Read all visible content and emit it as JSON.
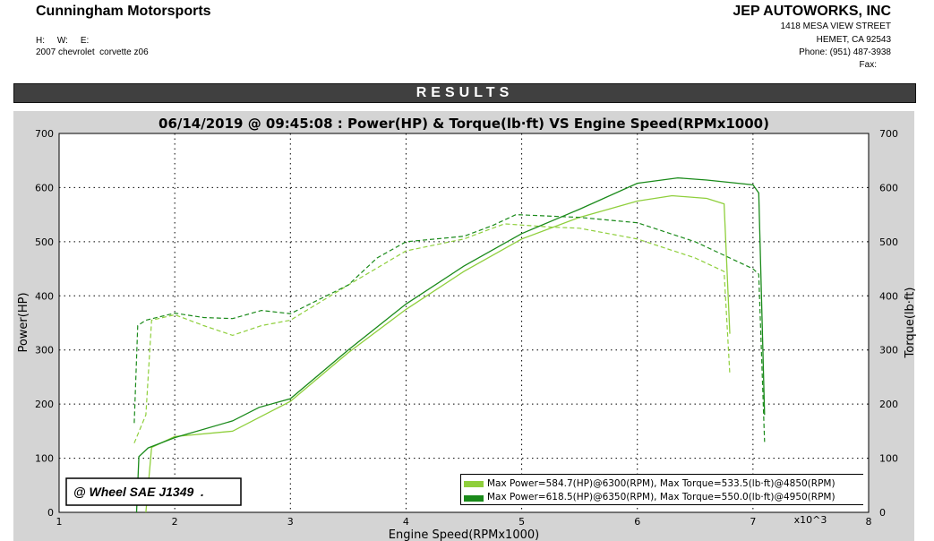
{
  "header": {
    "company": "Cunningham Motorsports",
    "hwe": "H:     W:     E:",
    "vehicle": "2007 chevrolet  corvette z06",
    "shop": "JEP AUTOWORKS, INC",
    "address": "1418 MESA VIEW STREET",
    "city": "HEMET, CA  92543",
    "phone": "Phone: (951) 487-3938",
    "fax": "Fax:"
  },
  "results_label": "RESULTS",
  "chart_data": {
    "type": "line",
    "title": "06/14/2019 @ 09:45:08 : Power(HP) & Torque(lb·ft) VS Engine Speed(RPMx1000)",
    "xlabel": "Engine Speed(RPMx1000)",
    "x_multiplier": "x10^3",
    "ylabel": "Power(HP)",
    "y2label": "Torque(lb·ft)",
    "xlim": [
      1,
      8
    ],
    "ylim": [
      0,
      700
    ],
    "y2lim": [
      0,
      700
    ],
    "xticks": [
      "1",
      "2",
      "3",
      "4",
      "5",
      "6",
      "7",
      "8"
    ],
    "yticks": [
      "0",
      "100",
      "200",
      "300",
      "400",
      "500",
      "600",
      "700"
    ],
    "grid": true,
    "legend_placement": "bottom-right",
    "annotation": "@ Wheel SAE J1349  .",
    "series": [
      {
        "name": "Max Power=584.7(HP)@6300(RPM), Max Torque=533.5(lb·ft)@4850(RPM)",
        "color": "#8fcf3c",
        "power": [
          [
            1.75,
            0
          ],
          [
            1.8,
            120
          ],
          [
            2.0,
            140
          ],
          [
            2.5,
            150
          ],
          [
            3.0,
            205
          ],
          [
            3.5,
            295
          ],
          [
            4.0,
            375
          ],
          [
            4.5,
            445
          ],
          [
            5.0,
            505
          ],
          [
            5.5,
            545
          ],
          [
            6.0,
            575
          ],
          [
            6.3,
            585
          ],
          [
            6.6,
            580
          ],
          [
            6.75,
            570
          ],
          [
            6.8,
            330
          ]
        ],
        "torque": [
          [
            1.65,
            128
          ],
          [
            1.75,
            180
          ],
          [
            1.8,
            355
          ],
          [
            2.0,
            365
          ],
          [
            2.25,
            345
          ],
          [
            2.5,
            327
          ],
          [
            2.75,
            345
          ],
          [
            3.0,
            355
          ],
          [
            3.5,
            420
          ],
          [
            4.0,
            483
          ],
          [
            4.5,
            505
          ],
          [
            4.85,
            533
          ],
          [
            5.25,
            527
          ],
          [
            5.5,
            525
          ],
          [
            6.0,
            505
          ],
          [
            6.5,
            470
          ],
          [
            6.75,
            445
          ],
          [
            6.8,
            255
          ]
        ]
      },
      {
        "name": "Max Power=618.5(HP)@6350(RPM), Max Torque=550.0(lb·ft)@4950(RPM)",
        "color": "#1a8a1a",
        "power": [
          [
            1.67,
            0
          ],
          [
            1.69,
            103
          ],
          [
            1.77,
            119
          ],
          [
            2.0,
            138
          ],
          [
            2.5,
            169
          ],
          [
            2.73,
            194
          ],
          [
            3.0,
            210
          ],
          [
            3.5,
            300
          ],
          [
            4.0,
            385
          ],
          [
            4.5,
            455
          ],
          [
            5.0,
            515
          ],
          [
            5.5,
            560
          ],
          [
            6.0,
            608
          ],
          [
            6.35,
            618
          ],
          [
            6.6,
            614
          ],
          [
            7.0,
            605
          ],
          [
            7.05,
            590
          ],
          [
            7.1,
            180
          ]
        ],
        "torque": [
          [
            1.65,
            165
          ],
          [
            1.68,
            345
          ],
          [
            1.75,
            355
          ],
          [
            2.0,
            368
          ],
          [
            2.25,
            360
          ],
          [
            2.5,
            358
          ],
          [
            2.75,
            373
          ],
          [
            3.0,
            367
          ],
          [
            3.5,
            420
          ],
          [
            3.75,
            470
          ],
          [
            4.0,
            500
          ],
          [
            4.5,
            510
          ],
          [
            4.75,
            530
          ],
          [
            4.95,
            550
          ],
          [
            5.5,
            545
          ],
          [
            6.0,
            535
          ],
          [
            6.5,
            500
          ],
          [
            7.0,
            450
          ],
          [
            7.05,
            440
          ],
          [
            7.1,
            130
          ]
        ]
      }
    ]
  }
}
